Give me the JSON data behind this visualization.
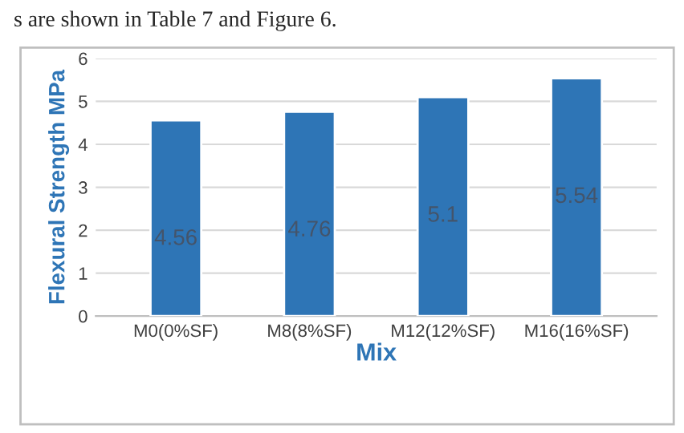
{
  "chart_data": {
    "type": "bar",
    "categories": [
      "M0(0%SF)",
      "M8(8%SF)",
      "M12(12%SF)",
      "M16(16%SF)"
    ],
    "values": [
      4.56,
      4.76,
      5.1,
      5.54
    ],
    "value_labels": [
      "4.56",
      "4.76",
      "5.1",
      "5.54"
    ],
    "color": "#2e75b6",
    "xlabel": "Mix",
    "ylabel": "Flexural Strength MPa",
    "ylim": [
      0,
      6
    ],
    "yticks": [
      0,
      1,
      2,
      3,
      4,
      5,
      6
    ],
    "grid": "y",
    "legend": false,
    "annotations": [
      "s are shown in Table 7 and Figure 6."
    ]
  }
}
